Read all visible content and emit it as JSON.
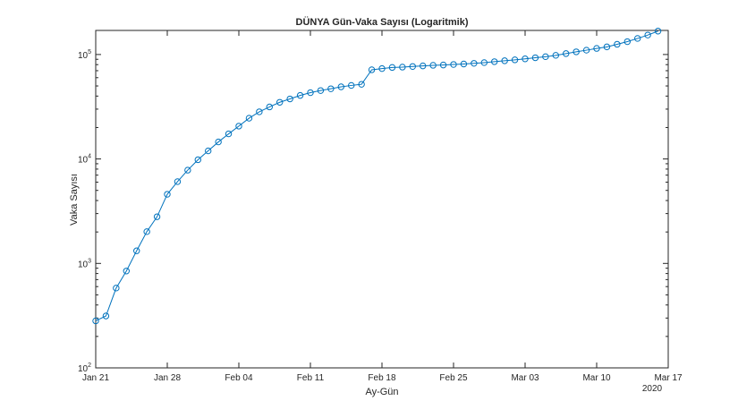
{
  "chart_data": {
    "type": "line",
    "title": "DÜNYA Gün-Vaka Sayısı (Logaritmik)",
    "xlabel": "Ay-Gün",
    "ylabel": "Vaka Sayısı",
    "x_start": "2020-01-21",
    "x_end": "2020-03-16",
    "xlim": [
      "2020-01-21",
      "2020-03-17"
    ],
    "x_ticks": [
      "Jan 21",
      "Jan 28",
      "Feb 04",
      "Feb 11",
      "Feb 18",
      "Feb 25",
      "Mar 03",
      "Mar 10",
      "Mar 17"
    ],
    "x_year_label": "2020",
    "y_scale": "log",
    "ylim": [
      100,
      170000
    ],
    "y_ticks": [
      {
        "exp": "2",
        "value": 100
      },
      {
        "exp": "3",
        "value": 1000
      },
      {
        "exp": "4",
        "value": 10000
      },
      {
        "exp": "5",
        "value": 100000
      }
    ],
    "y_tick_base": "10",
    "grid": false,
    "marker": "circle",
    "line_color": "#0072BD",
    "values": [
      282,
      314,
      581,
      846,
      1320,
      2014,
      2798,
      4593,
      6065,
      7818,
      9826,
      11953,
      14557,
      17391,
      20630,
      24554,
      28276,
      31481,
      34886,
      37558,
      40554,
      43103,
      45171,
      46997,
      49053,
      50580,
      51857,
      71429,
      73332,
      75204,
      75748,
      76769,
      77794,
      78811,
      79331,
      80239,
      81109,
      82294,
      83652,
      85403,
      87137,
      88948,
      90870,
      93090,
      95324,
      98192,
      102050,
      106099,
      109991,
      114381,
      118319,
      125260,
      132758,
      142534,
      153517,
      167515
    ]
  }
}
